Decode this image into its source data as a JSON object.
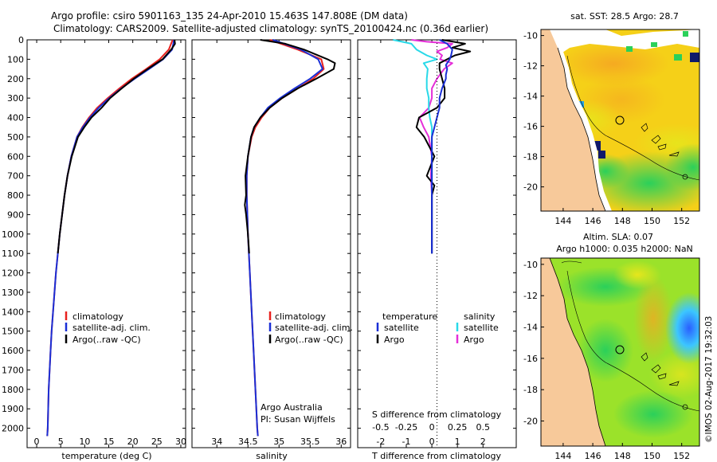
{
  "header": {
    "line1": "Argo profile: csiro 5901163_135 24-Apr-2010 15.463S 147.808E (DM data)",
    "line2": "Climatology: CARS2009. Satellite-adjusted climatology: synTS_20100424.nc (0.36d earlier)"
  },
  "colors": {
    "climatology": "#e8211e",
    "satellite": "#1a2fd6",
    "argo": "#000000",
    "satellite_s": "#29d9e8",
    "argo_s": "#e52fd8",
    "land": "#f7c99a"
  },
  "chart_data": [
    {
      "type": "line",
      "name": "temperature",
      "xlabel": "temperature (deg C)",
      "ylabel": "",
      "xlim": [
        -2,
        31
      ],
      "ylim": [
        2100,
        0
      ],
      "xticks": [
        "0",
        "5",
        "10",
        "15",
        "20",
        "25",
        "30"
      ],
      "yticks": [
        "0",
        "100",
        "200",
        "300",
        "400",
        "500",
        "600",
        "700",
        "800",
        "900",
        "1000",
        "1100",
        "1200",
        "1300",
        "1400",
        "1500",
        "1600",
        "1700",
        "1800",
        "1900",
        "2000"
      ],
      "legend": [
        "climatology",
        "satellite-adj. clim.",
        "Argo(..raw -QC)"
      ],
      "series": [
        {
          "name": "climatology",
          "depth": [
            0,
            50,
            100,
            150,
            200,
            250,
            300,
            350,
            400,
            450,
            500,
            600,
            700,
            800,
            900,
            1000,
            1100,
            1200,
            1300,
            1400,
            1500,
            1600,
            1700,
            1800,
            1900,
            2000,
            2040
          ],
          "values": [
            28.3,
            27.5,
            25.6,
            22.8,
            19.8,
            17.2,
            14.8,
            12.6,
            10.9,
            9.5,
            8.4,
            7.2,
            6.4,
            5.8,
            5.3,
            4.8,
            4.4,
            4.0,
            3.7,
            3.4,
            3.1,
            2.9,
            2.7,
            2.5,
            2.4,
            2.3,
            2.2
          ]
        },
        {
          "name": "satellite",
          "depth": [
            0,
            50,
            100,
            150,
            200,
            250,
            300,
            350,
            400,
            450,
            500,
            600,
            700,
            800,
            900,
            1000,
            1100,
            1200,
            1300,
            1400,
            1500,
            1600,
            1700,
            1800,
            1900,
            2000,
            2040
          ],
          "values": [
            28.6,
            28.2,
            26.3,
            23.4,
            20.4,
            17.6,
            15.1,
            12.9,
            11.1,
            9.6,
            8.4,
            7.2,
            6.4,
            5.8,
            5.3,
            4.8,
            4.4,
            4.0,
            3.7,
            3.4,
            3.1,
            2.9,
            2.7,
            2.5,
            2.4,
            2.3,
            2.2
          ]
        },
        {
          "name": "Argo",
          "depth": [
            0,
            20,
            50,
            100,
            150,
            200,
            250,
            300,
            350,
            400,
            450,
            500,
            600,
            700,
            800,
            900,
            1000,
            1100
          ],
          "values": [
            28.7,
            28.8,
            28.0,
            26.2,
            23.1,
            20.2,
            17.7,
            15.3,
            13.5,
            11.4,
            9.9,
            8.6,
            7.3,
            6.4,
            5.8,
            5.3,
            4.8,
            4.4
          ]
        }
      ]
    },
    {
      "type": "line",
      "name": "salinity",
      "xlabel": "salinity",
      "xlim": [
        33.6,
        36.15
      ],
      "ylim": [
        2100,
        0
      ],
      "xticks": [
        "34",
        "34.5",
        "35",
        "35.5",
        "36"
      ],
      "legend": [
        "climatology",
        "satellite-adj. clim.",
        "Argo(..raw -QC)"
      ],
      "annotations": [
        "Argo Australia",
        "PI: Susan Wijffels"
      ],
      "series": [
        {
          "name": "climatology",
          "depth": [
            0,
            50,
            100,
            150,
            200,
            250,
            300,
            350,
            400,
            450,
            500,
            600,
            700,
            800,
            900,
            1000,
            1200,
            1400,
            1600,
            1800,
            2000,
            2040
          ],
          "values": [
            34.85,
            35.3,
            35.68,
            35.72,
            35.55,
            35.3,
            35.05,
            34.85,
            34.72,
            34.62,
            34.56,
            34.5,
            34.48,
            34.48,
            34.49,
            34.5,
            34.53,
            34.56,
            34.59,
            34.62,
            34.65,
            34.66
          ]
        },
        {
          "name": "satellite",
          "depth": [
            0,
            50,
            100,
            150,
            200,
            250,
            300,
            350,
            400,
            450,
            500,
            600,
            700,
            800,
            900,
            1000,
            1200,
            1400,
            1600,
            1800,
            2000,
            2040
          ],
          "values": [
            34.9,
            35.35,
            35.63,
            35.7,
            35.5,
            35.25,
            35.02,
            34.82,
            34.7,
            34.6,
            34.55,
            34.5,
            34.48,
            34.48,
            34.49,
            34.5,
            34.53,
            34.56,
            34.59,
            34.62,
            34.65,
            34.66
          ]
        },
        {
          "name": "Argo",
          "depth": [
            0,
            20,
            50,
            100,
            120,
            150,
            200,
            250,
            300,
            350,
            400,
            450,
            500,
            600,
            700,
            800,
            850,
            900,
            1000,
            1100
          ],
          "values": [
            34.7,
            35.1,
            35.4,
            35.78,
            35.9,
            35.88,
            35.6,
            35.3,
            35.05,
            34.85,
            34.7,
            34.6,
            34.55,
            34.5,
            34.46,
            34.47,
            34.45,
            34.47,
            34.5,
            34.52
          ]
        }
      ]
    },
    {
      "type": "line",
      "name": "differences",
      "xlabel": "T difference from climatology",
      "xlabel_top": "S difference from climatology",
      "xlim": [
        -2.9,
        3.3
      ],
      "ylim": [
        2100,
        0
      ],
      "xticks": [
        "-2",
        "-1",
        "0",
        "1",
        "2"
      ],
      "xticks_s": [
        "-0.5",
        "-0.25",
        "0",
        "0.25",
        "0.5"
      ],
      "legend_t": {
        "title": "temperature",
        "items": [
          "satellite",
          "Argo"
        ]
      },
      "legend_s": {
        "title": "salinity",
        "items": [
          "satellite",
          "Argo"
        ]
      },
      "series": [
        {
          "name": "T satellite",
          "depth": [
            0,
            20,
            50,
            80,
            100,
            130,
            150,
            180,
            200,
            250,
            300,
            350,
            400,
            450,
            500,
            600,
            700,
            800,
            900,
            1000,
            1100
          ],
          "values": [
            0.3,
            0.6,
            0.8,
            0.75,
            0.7,
            0.55,
            0.6,
            0.55,
            0.55,
            0.4,
            0.3,
            0.3,
            0.2,
            0.1,
            0.0,
            0.0,
            0.0,
            0.0,
            0.0,
            0.0,
            0.0
          ]
        },
        {
          "name": "T Argo",
          "depth": [
            0,
            20,
            40,
            60,
            80,
            100,
            120,
            150,
            200,
            250,
            300,
            350,
            400,
            450,
            500,
            600,
            700,
            750,
            800,
            900,
            1000,
            1100
          ],
          "values": [
            0.4,
            1.3,
            0.8,
            1.5,
            0.9,
            0.6,
            0.3,
            0.3,
            0.4,
            0.5,
            0.5,
            0.2,
            -0.5,
            -0.6,
            -0.3,
            0.1,
            -0.2,
            0.1,
            0.0,
            0.0,
            0.0,
            0.0
          ]
        },
        {
          "name": "S satellite",
          "depth": [
            0,
            20,
            50,
            80,
            100,
            120,
            150,
            200,
            250,
            300,
            350,
            400,
            450,
            500,
            600,
            700,
            800,
            900,
            1000,
            1100
          ],
          "values": [
            -0.38,
            -0.2,
            -0.15,
            -0.05,
            0.05,
            -0.08,
            -0.04,
            -0.05,
            -0.05,
            -0.03,
            -0.03,
            -0.02,
            0.0,
            0.0,
            0.0,
            0.0,
            0.0,
            0.0,
            0.0,
            0.0
          ]
        },
        {
          "name": "S Argo",
          "depth": [
            0,
            10,
            20,
            40,
            60,
            80,
            100,
            120,
            150,
            200,
            250,
            300,
            350,
            400,
            450,
            500,
            600,
            700,
            800,
            900,
            1000,
            1100
          ],
          "values": [
            -0.2,
            -0.05,
            0.2,
            0.15,
            0.05,
            0.1,
            0.08,
            0.2,
            0.12,
            0.05,
            0.0,
            0.0,
            -0.03,
            -0.12,
            -0.08,
            -0.03,
            0.0,
            -0.01,
            0.0,
            0.0,
            0.0,
            0.0
          ]
        }
      ]
    },
    {
      "type": "heatmap",
      "name": "sst-map",
      "title": "sat. SST: 28.5 Argo: 28.7",
      "xticks": [
        "144",
        "146",
        "148",
        "150",
        "152"
      ],
      "yticks": [
        "-10",
        "-12",
        "-14",
        "-16",
        "-18",
        "-20"
      ],
      "xlim": [
        142.5,
        153.2
      ],
      "ylim": [
        -21.6,
        -9.6
      ],
      "argo_position": [
        147.8,
        -15.46
      ]
    },
    {
      "type": "heatmap",
      "name": "sla-map",
      "title": "Altim. SLA: 0.07",
      "subtitle": "Argo h1000: 0.035 h2000: NaN",
      "xticks": [
        "144",
        "146",
        "148",
        "150",
        "152"
      ],
      "yticks": [
        "-10",
        "-12",
        "-14",
        "-16",
        "-18",
        "-20"
      ],
      "xlim": [
        142.5,
        153.2
      ],
      "ylim": [
        -21.6,
        -9.6
      ],
      "argo_position": [
        147.8,
        -15.46
      ]
    }
  ],
  "footer": {
    "watermark": "©IMOS 02-Aug-2017 19:32:03"
  }
}
